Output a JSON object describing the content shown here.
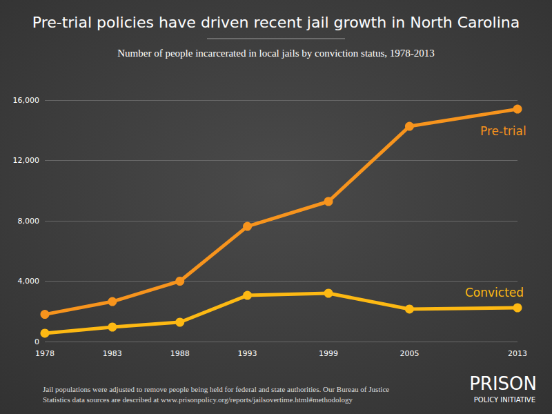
{
  "chart_data": {
    "type": "line",
    "title": "Pre-trial policies have driven recent jail growth in North Carolina",
    "subtitle": "Number of people incarcerated in local jails by conviction status, 1978-2013",
    "x": [
      1978,
      1983,
      1988,
      1993,
      1999,
      2005,
      2013
    ],
    "xlim": [
      1978,
      2013
    ],
    "xticks": [
      1978,
      1983,
      1988,
      1993,
      1999,
      2005,
      2013
    ],
    "ylim": [
      0,
      16000
    ],
    "yticks": [
      0,
      {
        "value": 4000,
        "label": "4,000"
      },
      {
        "value": 8000,
        "label": "8,000"
      },
      {
        "value": 12000,
        "label": "12,000"
      },
      {
        "value": 16000,
        "label": "16,000"
      }
    ],
    "grid": true,
    "marker": "circle",
    "series": [
      {
        "name": "Pre-trial",
        "color": "#f7941d",
        "values": [
          1800,
          2650,
          4000,
          7630,
          9280,
          14260,
          15400
        ]
      },
      {
        "name": "Convicted",
        "color": "#fdb913",
        "values": [
          550,
          960,
          1280,
          3060,
          3200,
          2150,
          2240
        ]
      }
    ],
    "footnote": [
      "Jail populations were adjusted to remove people being held for federal and state authorities. Our Bureau of Justice",
      "Statistics data sources are described at www.prisonpolicy.org/reports/jailsovertime.html#methodology"
    ],
    "logo": [
      "PRISON",
      "POLICY INITIATIVE"
    ]
  }
}
